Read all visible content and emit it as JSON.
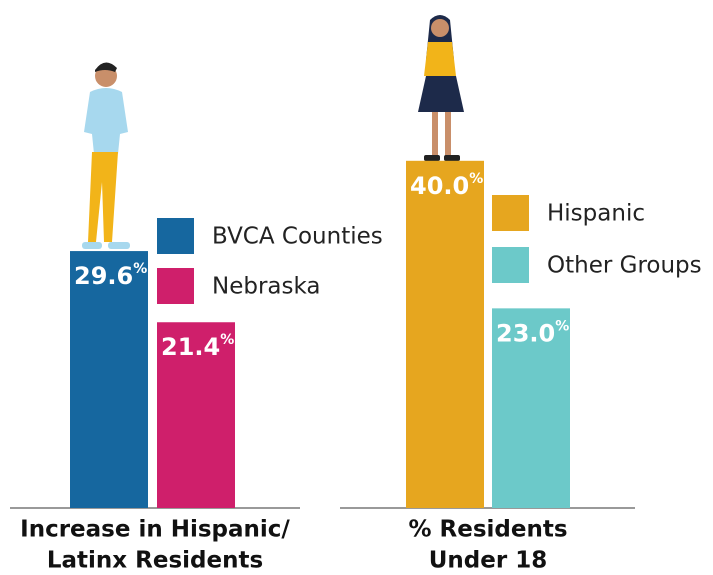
{
  "chart_data": [
    {
      "type": "bar",
      "xlabel": [
        "Increase in Hispanic/",
        "Latinx Residents"
      ],
      "series": [
        {
          "name": "BVCA Counties",
          "color": "#16679f",
          "values": [
            29.6
          ],
          "value_labels": [
            "29.6%"
          ]
        },
        {
          "name": "Nebraska",
          "color": "#cf1f6b",
          "values": [
            21.4
          ],
          "value_labels": [
            "21.4%"
          ]
        }
      ]
    },
    {
      "type": "bar",
      "xlabel": [
        "% Residents",
        "Under 18"
      ],
      "series": [
        {
          "name": "Hispanic",
          "color": "#e6a61f",
          "values": [
            40.0
          ],
          "value_labels": [
            "40.0%"
          ]
        },
        {
          "name": "Other Groups",
          "color": "#6cc9c9",
          "values": [
            23.0
          ],
          "value_labels": [
            "23.0%"
          ]
        }
      ]
    }
  ]
}
